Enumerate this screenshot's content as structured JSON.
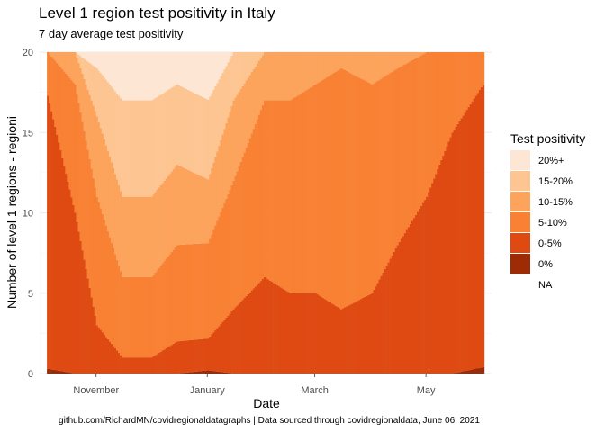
{
  "chart_data": {
    "type": "area",
    "title": "Level 1 region test positivity in Italy",
    "subtitle": "7 day average test positivity",
    "xlabel": "Date",
    "ylabel": "Number of level 1 regions - regioni",
    "caption": "github.com/RichardMN/covidregionaldatagraphs | Data sourced through covidregionaldata, June 06, 2021",
    "xlim": [
      "2020-10-01",
      "2021-06-06"
    ],
    "ylim": [
      0,
      20
    ],
    "y_ticks": [
      0,
      5,
      10,
      15,
      20
    ],
    "x_ticks": [
      {
        "date": "2020-11-01",
        "label": "November"
      },
      {
        "date": "2021-01-01",
        "label": "January"
      },
      {
        "date": "2021-03-01",
        "label": "March"
      },
      {
        "date": "2021-05-01",
        "label": "May"
      }
    ],
    "grid": true,
    "legend": {
      "title": "Test positivity",
      "position": "right",
      "entries": [
        {
          "label": "20%+",
          "color": "#fee6d4"
        },
        {
          "label": "15-20%",
          "color": "#fdc592"
        },
        {
          "label": "10-15%",
          "color": "#fca35c"
        },
        {
          "label": "5-10%",
          "color": "#f88134"
        },
        {
          "label": "0-5%",
          "color": "#de4a12"
        },
        {
          "label": "0%",
          "color": "#9c2b06"
        },
        {
          "label": "NA",
          "color": "#ffffff"
        }
      ]
    },
    "stack_order": [
      "0%",
      "0-5%",
      "5-10%",
      "10-15%",
      "15-20%",
      "20%+",
      "NA"
    ],
    "series_dates": [
      "2020-10-05",
      "2020-10-20",
      "2020-11-01",
      "2020-11-15",
      "2020-12-01",
      "2020-12-15",
      "2021-01-01",
      "2021-01-15",
      "2021-02-01",
      "2021-02-15",
      "2021-03-01",
      "2021-03-15",
      "2021-04-01",
      "2021-04-15",
      "2021-05-01",
      "2021-05-15",
      "2021-06-01"
    ],
    "series": [
      {
        "name": "0%",
        "values": [
          0.3,
          0,
          0,
          0,
          0,
          0,
          0.2,
          0,
          0,
          0,
          0,
          0,
          0,
          0,
          0,
          0,
          0.4
        ]
      },
      {
        "name": "0-5%",
        "values": [
          17,
          10,
          3,
          1,
          1,
          2,
          2,
          4,
          6,
          5,
          5,
          4,
          5,
          8,
          11,
          15,
          17.6
        ]
      },
      {
        "name": "5-10%",
        "values": [
          2.7,
          8,
          8,
          5,
          5,
          6,
          6,
          8,
          11,
          12,
          13,
          15,
          13,
          11,
          9,
          5,
          2
        ]
      },
      {
        "name": "10-15%",
        "values": [
          0,
          2,
          5,
          5,
          5,
          5,
          4,
          5,
          3,
          3,
          2,
          1,
          2,
          1,
          0,
          0,
          0
        ]
      },
      {
        "name": "15-20%",
        "values": [
          0,
          0,
          3,
          6,
          6,
          5,
          5,
          3,
          0,
          0,
          0,
          0,
          0,
          0,
          0,
          0,
          0
        ]
      },
      {
        "name": "20%+",
        "values": [
          0,
          0,
          1,
          3,
          3,
          2,
          3,
          0,
          0,
          0,
          0,
          0,
          0,
          0,
          0,
          0,
          0
        ]
      }
    ]
  }
}
